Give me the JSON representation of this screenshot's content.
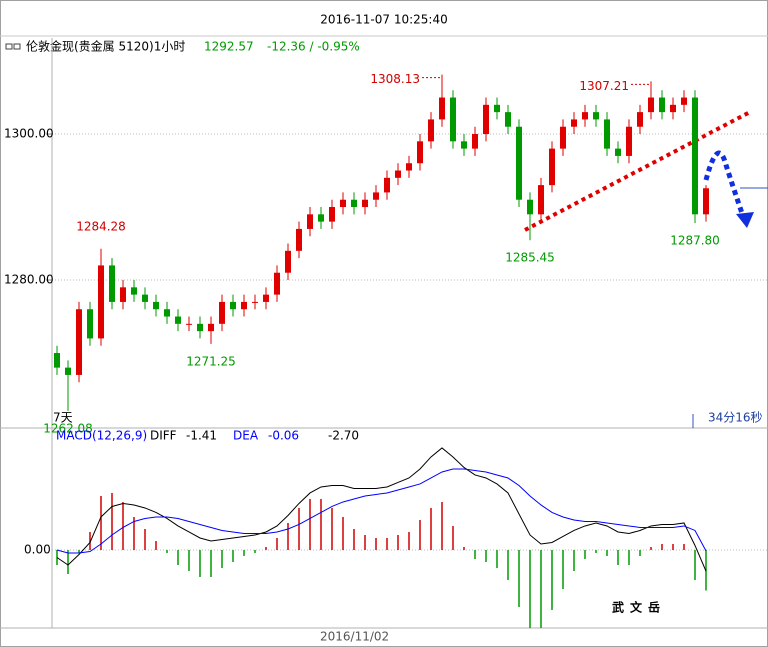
{
  "window_title": "2016-11-07 10:25:40",
  "header": {
    "instrument": "伦敦金现(贵金属 5120)1小时",
    "last": "1292.57",
    "change": "-12.36 / -0.95%"
  },
  "chart_data": [
    {
      "type": "candlestick",
      "up_color": "#e00000",
      "down_color": "#009a00",
      "open": [
        1270,
        1268,
        1267,
        1276,
        1272,
        1282,
        1277,
        1279,
        1278,
        1277,
        1276,
        1275,
        1274,
        1274,
        1273,
        1274,
        1277,
        1276,
        1277,
        1277,
        1278,
        1281,
        1284,
        1287,
        1289,
        1288,
        1290,
        1291,
        1290,
        1291,
        1292,
        1294,
        1295,
        1296,
        1299,
        1302,
        1305,
        1299,
        1298,
        1300,
        1304,
        1303,
        1301,
        1291,
        1289,
        1293,
        1298,
        1301,
        1302,
        1303,
        1302,
        1298,
        1297,
        1301,
        1303,
        1305,
        1303,
        1304,
        1305,
        1289
      ],
      "high": [
        1271,
        1269,
        1277,
        1277,
        1284.28,
        1283,
        1280,
        1280,
        1279,
        1278,
        1277,
        1276,
        1275,
        1275,
        1275,
        1278,
        1278,
        1278,
        1278,
        1279,
        1282,
        1285,
        1288,
        1290,
        1290,
        1291,
        1292,
        1292,
        1292,
        1293,
        1295,
        1296,
        1297,
        1300,
        1303,
        1308.13,
        1306,
        1300,
        1301,
        1305,
        1305,
        1304,
        1302,
        1292,
        1294,
        1299,
        1302,
        1303,
        1304,
        1304,
        1303,
        1299,
        1302,
        1304,
        1307.21,
        1306,
        1305,
        1306,
        1306,
        1293
      ],
      "low": [
        1267,
        1262.08,
        1266,
        1271,
        1271,
        1276,
        1276,
        1277,
        1276,
        1275,
        1274,
        1273,
        1273,
        1272,
        1271.25,
        1273,
        1275,
        1275,
        1276,
        1276,
        1277,
        1280,
        1283,
        1286,
        1287,
        1287,
        1289,
        1289,
        1289,
        1290,
        1291,
        1293,
        1294,
        1295,
        1298,
        1301,
        1298,
        1297,
        1297,
        1299,
        1302,
        1300,
        1290,
        1285.45,
        1288,
        1292,
        1297,
        1300,
        1301,
        1301,
        1297,
        1296,
        1296,
        1300,
        1302,
        1302,
        1302,
        1303,
        1287.8,
        1288
      ],
      "close": [
        1268,
        1267,
        1276,
        1272,
        1282,
        1277,
        1279,
        1278,
        1277,
        1276,
        1275,
        1274,
        1274,
        1273,
        1274,
        1277,
        1276,
        1277,
        1277,
        1278,
        1281,
        1284,
        1287,
        1289,
        1288,
        1290,
        1291,
        1290,
        1291,
        1292,
        1294,
        1295,
        1296,
        1299,
        1302,
        1305,
        1299,
        1298,
        1300,
        1304,
        1303,
        1301,
        1291,
        1289,
        1293,
        1298,
        1301,
        1302,
        1303,
        1302,
        1298,
        1297,
        1301,
        1303,
        1305,
        1303,
        1304,
        1305,
        1289,
        1292.57
      ],
      "ylim": [
        1259.73,
        1312.88
      ],
      "yticks": [
        {
          "value": 1280,
          "label": "1280.00"
        },
        {
          "value": 1300,
          "label": "1300.00"
        }
      ],
      "annotations": [
        "1284.28",
        "1262.08",
        "1271.25",
        "1308.13",
        "1285.45",
        "1307.21",
        "1287.80"
      ],
      "period_label": "7天",
      "countdown": "34分16秒"
    },
    {
      "type": "macd",
      "title": "MACD(12,26,9)",
      "series": [
        {
          "name": "DIFF",
          "color": "#000000",
          "values": [
            -0.5,
            -1,
            -0.3,
            0.5,
            2.2,
            2.9,
            3.1,
            3.0,
            2.8,
            2.5,
            2.1,
            1.6,
            1.2,
            0.8,
            0.6,
            0.7,
            0.8,
            0.9,
            1.0,
            1.2,
            1.6,
            2.3,
            3.1,
            3.8,
            4.2,
            4.3,
            4.3,
            4.1,
            4.1,
            4.1,
            4.2,
            4.5,
            4.8,
            5.4,
            6.2,
            6.8,
            6.2,
            5.5,
            5.0,
            4.8,
            4.4,
            3.8,
            2.4,
            1.0,
            0.4,
            0.5,
            0.9,
            1.3,
            1.6,
            1.8,
            1.6,
            1.2,
            1.1,
            1.3,
            1.6,
            1.7,
            1.7,
            1.8,
            0.3,
            -1.41
          ]
        },
        {
          "name": "DEA",
          "color": "#0000ff",
          "values": [
            0,
            -0.2,
            -0.2,
            -0.1,
            0.4,
            1.0,
            1.5,
            1.9,
            2.1,
            2.2,
            2.2,
            2.1,
            1.9,
            1.7,
            1.5,
            1.3,
            1.2,
            1.1,
            1.1,
            1.1,
            1.2,
            1.4,
            1.7,
            2.1,
            2.5,
            2.9,
            3.2,
            3.4,
            3.6,
            3.7,
            3.8,
            4.0,
            4.2,
            4.4,
            4.8,
            5.2,
            5.4,
            5.4,
            5.3,
            5.2,
            5.0,
            4.8,
            4.3,
            3.6,
            3.0,
            2.5,
            2.2,
            2.0,
            1.9,
            1.9,
            1.8,
            1.7,
            1.6,
            1.5,
            1.5,
            1.5,
            1.5,
            1.6,
            1.3,
            -0.06
          ]
        }
      ],
      "histogram": [
        -1.0,
        -1.6,
        -0.2,
        1.2,
        3.6,
        3.8,
        3.2,
        2.2,
        1.4,
        0.6,
        -0.2,
        -1.0,
        -1.4,
        -1.8,
        -1.8,
        -1.2,
        -0.8,
        -0.4,
        -0.2,
        0.2,
        0.8,
        1.8,
        2.8,
        3.4,
        3.4,
        2.8,
        2.2,
        1.4,
        1.0,
        0.8,
        0.8,
        1.0,
        1.2,
        2.0,
        2.8,
        3.2,
        1.6,
        0.2,
        -0.6,
        -0.8,
        -1.2,
        -2.0,
        -3.8,
        -5.2,
        -5.2,
        -4.0,
        -2.6,
        -1.4,
        -0.6,
        -0.2,
        -0.4,
        -1.0,
        -1.0,
        -0.4,
        0.2,
        0.4,
        0.4,
        0.4,
        -2.0,
        -2.7
      ],
      "header_values": {
        "diff": "-1.41",
        "dea": "-0.06",
        "macd": "-2.70"
      },
      "ylim": [
        -5.2,
        6.93
      ],
      "yticks": [
        {
          "value": 0,
          "label": "0.00"
        }
      ]
    }
  ],
  "x_label": "2016/11/02",
  "watermark": "武文岳"
}
